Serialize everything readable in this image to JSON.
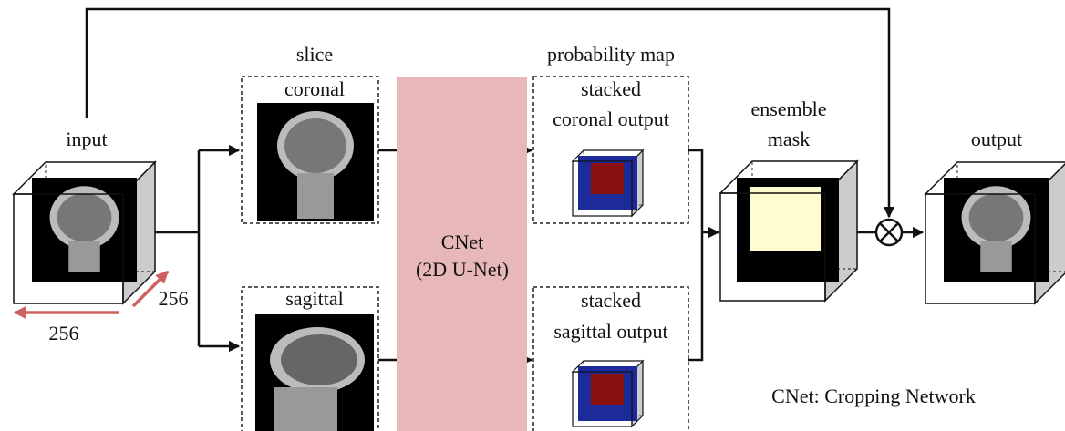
{
  "input": {
    "label": "input",
    "width_label": "256",
    "depth_label": "256"
  },
  "slice": {
    "title": "slice",
    "coronal": "coronal",
    "sagittal": "sagittal"
  },
  "network": {
    "lines": [
      "CNet",
      "(2D U-Net)"
    ]
  },
  "probability_map": {
    "title": "probability map",
    "coronal": [
      "stacked",
      "coronal output"
    ],
    "sagittal": [
      "stacked",
      "sagittal output"
    ]
  },
  "ensemble": [
    "ensemble",
    "mask"
  ],
  "output": {
    "label": "output"
  },
  "legend": "CNet: Cropping Network"
}
